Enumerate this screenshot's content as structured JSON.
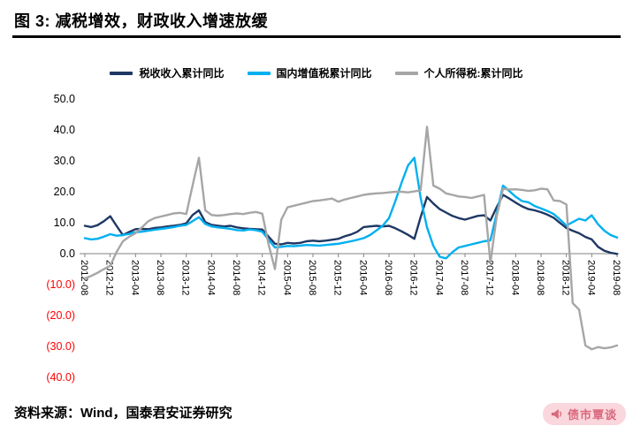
{
  "header": {
    "title": "图 3:  减税增效，财政收入增速放缓"
  },
  "source": {
    "text": "资料来源：Wind，国泰君安证券研究"
  },
  "watermark": {
    "text": "债市覃谈",
    "icon": "megaphone-icon",
    "bg_color": "#fad7dd",
    "fg_color": "#d9677c"
  },
  "chart_data": {
    "type": "line",
    "title": "",
    "xlabel": "",
    "ylabel": "",
    "ylim": [
      -40,
      50
    ],
    "grid": false,
    "legend_position": "top",
    "negative_label_color": "#FF0000",
    "axis_color": "#808080",
    "y_ticks": [
      50,
      40,
      30,
      20,
      10,
      0,
      -10,
      -20,
      -30,
      -40
    ],
    "y_tick_labels": [
      "50.0",
      "40.0",
      "30.0",
      "20.0",
      "10.0",
      "0.0",
      "(10.0)",
      "(20.0)",
      "(30.0)",
      "(40.0)"
    ],
    "x_tick_interval": 4,
    "categories": [
      "2012-08",
      "2012-09",
      "2012-10",
      "2012-11",
      "2012-12",
      "2013-01",
      "2013-02",
      "2013-03",
      "2013-04",
      "2013-05",
      "2013-06",
      "2013-07",
      "2013-08",
      "2013-09",
      "2013-10",
      "2013-11",
      "2013-12",
      "2014-01",
      "2014-02",
      "2014-03",
      "2014-04",
      "2014-05",
      "2014-06",
      "2014-07",
      "2014-08",
      "2014-09",
      "2014-10",
      "2014-11",
      "2014-12",
      "2015-01",
      "2015-02",
      "2015-03",
      "2015-04",
      "2015-05",
      "2015-06",
      "2015-07",
      "2015-08",
      "2015-09",
      "2015-10",
      "2015-11",
      "2015-12",
      "2016-01",
      "2016-02",
      "2016-03",
      "2016-04",
      "2016-05",
      "2016-06",
      "2016-07",
      "2016-08",
      "2016-09",
      "2016-10",
      "2016-11",
      "2016-12",
      "2017-01",
      "2017-02",
      "2017-03",
      "2017-04",
      "2017-05",
      "2017-06",
      "2017-07",
      "2017-08",
      "2017-09",
      "2017-10",
      "2017-11",
      "2017-12",
      "2018-01",
      "2018-02",
      "2018-03",
      "2018-04",
      "2018-05",
      "2018-06",
      "2018-07",
      "2018-08",
      "2018-09",
      "2018-10",
      "2018-11",
      "2018-12",
      "2019-01",
      "2019-02",
      "2019-03",
      "2019-04",
      "2019-05",
      "2019-06",
      "2019-07",
      "2019-08"
    ],
    "series": [
      {
        "name": "税收收入累计同比",
        "color": "#1F3864",
        "values": [
          9.0,
          8.6,
          9.2,
          10.5,
          12.1,
          9.0,
          6.0,
          7.0,
          7.9,
          8.0,
          7.9,
          8.3,
          8.5,
          8.8,
          9.0,
          9.3,
          9.8,
          12.5,
          14.0,
          10.2,
          9.3,
          9.0,
          8.8,
          9.0,
          8.5,
          8.2,
          8.0,
          7.9,
          7.8,
          5.5,
          3.2,
          3.0,
          3.5,
          3.3,
          3.5,
          4.0,
          4.2,
          4.0,
          4.2,
          4.5,
          4.8,
          5.6,
          6.2,
          7.1,
          8.6,
          8.8,
          9.0,
          8.8,
          9.0,
          8.2,
          7.2,
          6.1,
          4.8,
          11.8,
          18.3,
          16.2,
          14.4,
          13.3,
          12.2,
          11.5,
          11.0,
          11.6,
          12.2,
          12.4,
          10.7,
          15.0,
          19.0,
          17.8,
          16.5,
          15.3,
          14.4,
          14.0,
          13.4,
          12.6,
          11.6,
          9.9,
          8.3,
          7.4,
          6.6,
          5.4,
          4.6,
          2.2,
          0.9,
          0.3,
          -0.1
        ]
      },
      {
        "name": "国内增值税累计同比",
        "color": "#00B0F0",
        "values": [
          5.0,
          4.6,
          4.8,
          5.5,
          6.3,
          5.8,
          6.0,
          6.4,
          6.9,
          7.1,
          7.4,
          7.7,
          8.0,
          8.3,
          8.6,
          9.0,
          9.3,
          10.5,
          11.8,
          9.6,
          8.8,
          8.5,
          8.3,
          8.0,
          7.6,
          7.5,
          7.8,
          7.6,
          7.1,
          4.5,
          2.0,
          2.2,
          2.5,
          2.4,
          2.6,
          2.8,
          2.7,
          2.6,
          2.8,
          3.0,
          3.2,
          3.6,
          4.0,
          4.5,
          5.0,
          6.0,
          7.5,
          9.0,
          11.5,
          17.0,
          23.0,
          28.5,
          31.0,
          18.0,
          8.5,
          2.5,
          -1.0,
          -1.5,
          0.5,
          2.0,
          2.5,
          3.0,
          3.5,
          4.0,
          4.3,
          13.0,
          22.0,
          20.2,
          18.4,
          17.0,
          16.6,
          15.4,
          14.6,
          13.8,
          12.8,
          11.0,
          9.1,
          10.2,
          11.3,
          10.7,
          12.4,
          9.5,
          7.4,
          6.0,
          5.2
        ]
      },
      {
        "name": "个人所得税:累计同比",
        "color": "#A6A6A6",
        "values": [
          -8.0,
          -7.2,
          -6.2,
          -5.0,
          -3.9,
          0.5,
          4.0,
          5.5,
          6.6,
          8.5,
          10.5,
          11.5,
          12.0,
          12.5,
          13.0,
          13.2,
          12.8,
          22.0,
          31.0,
          14.0,
          12.5,
          12.3,
          12.5,
          12.8,
          13.0,
          12.8,
          13.2,
          13.5,
          12.9,
          3.0,
          -5.0,
          11.0,
          15.0,
          15.5,
          16.0,
          16.5,
          17.0,
          17.2,
          17.5,
          17.8,
          16.8,
          17.5,
          18.0,
          18.5,
          19.0,
          19.3,
          19.5,
          19.6,
          19.8,
          20.0,
          20.0,
          19.8,
          20.1,
          20.5,
          41.0,
          22.0,
          21.0,
          19.5,
          19.0,
          18.5,
          18.3,
          18.0,
          18.5,
          19.0,
          -3.0,
          12.0,
          21.0,
          20.7,
          20.8,
          20.6,
          20.3,
          20.5,
          21.0,
          20.8,
          17.2,
          17.0,
          15.9,
          -16.0,
          -18.1,
          -29.7,
          -30.9,
          -30.2,
          -30.6,
          -30.3,
          -29.7
        ]
      }
    ]
  }
}
